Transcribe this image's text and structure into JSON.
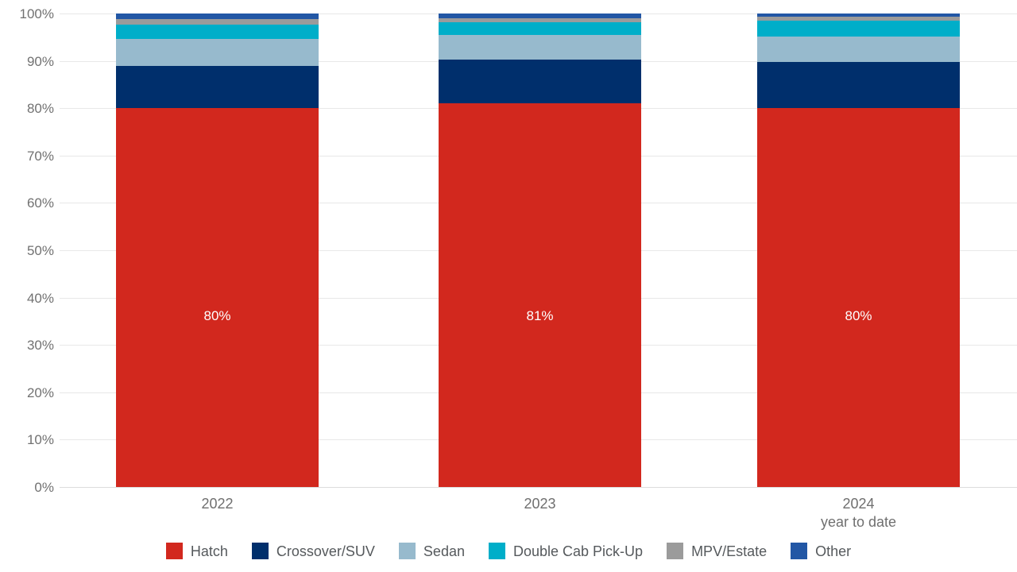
{
  "chart_data": {
    "type": "bar",
    "variant": "stacked-percent",
    "title": "",
    "xlabel": "",
    "ylabel": "",
    "ylim": [
      0,
      100
    ],
    "grid": true,
    "legend_position": "bottom",
    "y_ticks": [
      "0%",
      "10%",
      "20%",
      "30%",
      "40%",
      "50%",
      "60%",
      "70%",
      "80%",
      "90%",
      "100%"
    ],
    "categories": [
      "2022",
      "2023",
      "2024"
    ],
    "category_sublabels": [
      "",
      "",
      "year to date"
    ],
    "series": [
      {
        "name": "Hatch",
        "color": "#d2281e",
        "values": [
          80.0,
          81.0,
          80.0
        ]
      },
      {
        "name": "Crossover/SUV",
        "color": "#002f6c",
        "values": [
          8.9,
          9.3,
          9.7
        ]
      },
      {
        "name": "Sedan",
        "color": "#97bacd",
        "values": [
          5.8,
          5.2,
          5.4
        ]
      },
      {
        "name": "Double Cab Pick-Up",
        "color": "#00aec9",
        "values": [
          3.0,
          2.6,
          3.4
        ]
      },
      {
        "name": "MPV/Estate",
        "color": "#9b9b9b",
        "values": [
          1.2,
          0.9,
          0.8
        ]
      },
      {
        "name": "Other",
        "color": "#2257a5",
        "values": [
          1.1,
          1.0,
          0.7
        ]
      }
    ],
    "bar_labels": {
      "series": "Hatch",
      "values": [
        "80%",
        "81%",
        "80%"
      ]
    },
    "colors": {
      "gridline": "#e8e8e8",
      "axis_text": "#717171",
      "category_text": "#6f6f6f",
      "legend_text": "#55595c",
      "bar_label_text": "#ffffff"
    }
  }
}
